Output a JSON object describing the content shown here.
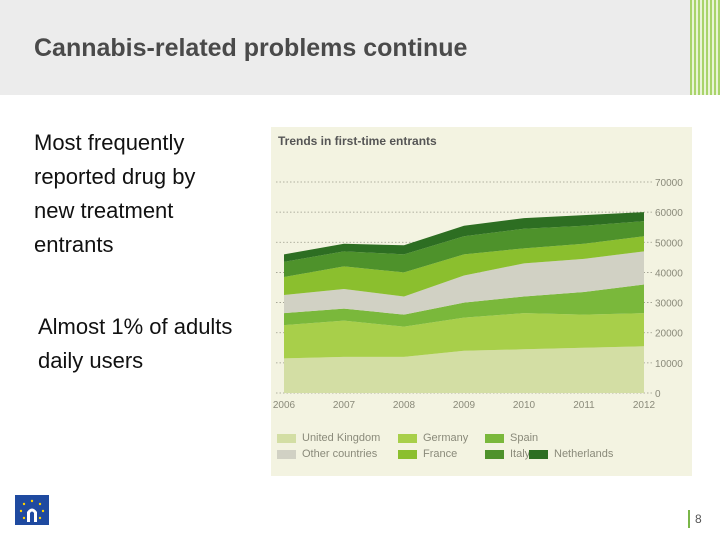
{
  "slide": {
    "title": "Cannabis-related problems continue",
    "bullet1": "Most frequently reported drug by new treatment entrants",
    "bullet2": "Almost 1% of adults daily users",
    "page_number": "8"
  },
  "chart_data": {
    "type": "area",
    "stacked": true,
    "title": "Trends in first-time entrants",
    "x": [
      "2006",
      "2007",
      "2008",
      "2009",
      "2010",
      "2011",
      "2012"
    ],
    "ylim": [
      0,
      70000
    ],
    "yticks": [
      "0",
      "10000",
      "20000",
      "30000",
      "40000",
      "50000",
      "60000",
      "70000"
    ],
    "series": [
      {
        "name": "United Kingdom",
        "color": "#d3dea4",
        "values": [
          11500,
          12000,
          12000,
          14000,
          14500,
          15000,
          15500
        ]
      },
      {
        "name": "Germany",
        "color": "#a8cf4a",
        "values": [
          11000,
          12000,
          10000,
          11000,
          12000,
          11000,
          11000
        ]
      },
      {
        "name": "Spain",
        "color": "#7ab83b",
        "values": [
          4000,
          4000,
          4000,
          5000,
          5500,
          7500,
          9500
        ]
      },
      {
        "name": "Other countries",
        "color": "#d1d1c4",
        "values": [
          6000,
          6500,
          6000,
          9000,
          11000,
          11000,
          11000
        ]
      },
      {
        "name": "France",
        "color": "#8bbf2e",
        "values": [
          6000,
          7500,
          8000,
          7000,
          5000,
          5000,
          5000
        ]
      },
      {
        "name": "Italy",
        "color": "#4e922b",
        "values": [
          5000,
          5000,
          6000,
          6000,
          6500,
          6000,
          5000
        ]
      },
      {
        "name": "Netherlands",
        "color": "#2d6e22",
        "values": [
          2500,
          2500,
          3000,
          3500,
          3500,
          3500,
          3000
        ]
      }
    ],
    "legend_position": "bottom"
  }
}
